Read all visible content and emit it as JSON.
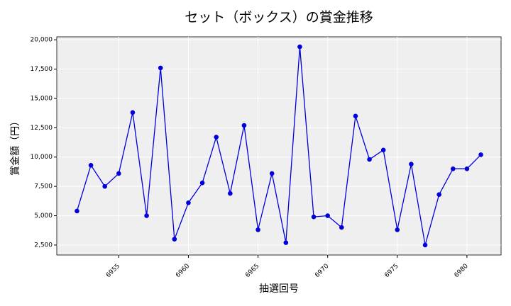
{
  "chart_data": {
    "type": "line",
    "title": "セット（ボックス）の賞金推移",
    "xlabel": "抽選回号",
    "ylabel": "賞金額（円）",
    "x": [
      6952,
      6953,
      6954,
      6955,
      6956,
      6957,
      6958,
      6959,
      6960,
      6961,
      6962,
      6963,
      6964,
      6965,
      6966,
      6967,
      6968,
      6969,
      6970,
      6971,
      6972,
      6973,
      6974,
      6975,
      6976,
      6977,
      6978,
      6979,
      6980,
      6981
    ],
    "series": [
      {
        "color": "#0000dd",
        "values": [
          5400,
          9300,
          7500,
          8600,
          13800,
          5000,
          17600,
          3000,
          6100,
          7800,
          11700,
          6900,
          12700,
          3800,
          8600,
          2700,
          19400,
          4900,
          5000,
          4000,
          13500,
          9800,
          10600,
          3800,
          9400,
          2500,
          6800,
          9000,
          9000,
          10200
        ]
      }
    ],
    "xlim": [
      6950.55,
      6982.45
    ],
    "ylim": [
      1650,
      20250
    ],
    "xticks": [
      6955,
      6960,
      6965,
      6970,
      6975,
      6980
    ],
    "yticks": [
      {
        "value": 2500,
        "label": "2,500"
      },
      {
        "value": 5000,
        "label": "5,000"
      },
      {
        "value": 7500,
        "label": "7,500"
      },
      {
        "value": 10000,
        "label": "10,000"
      },
      {
        "value": 12500,
        "label": "12,500"
      },
      {
        "value": 15000,
        "label": "15,000"
      },
      {
        "value": 17500,
        "label": "17,500"
      },
      {
        "value": 20000,
        "label": "20,000"
      }
    ],
    "grid": true
  }
}
